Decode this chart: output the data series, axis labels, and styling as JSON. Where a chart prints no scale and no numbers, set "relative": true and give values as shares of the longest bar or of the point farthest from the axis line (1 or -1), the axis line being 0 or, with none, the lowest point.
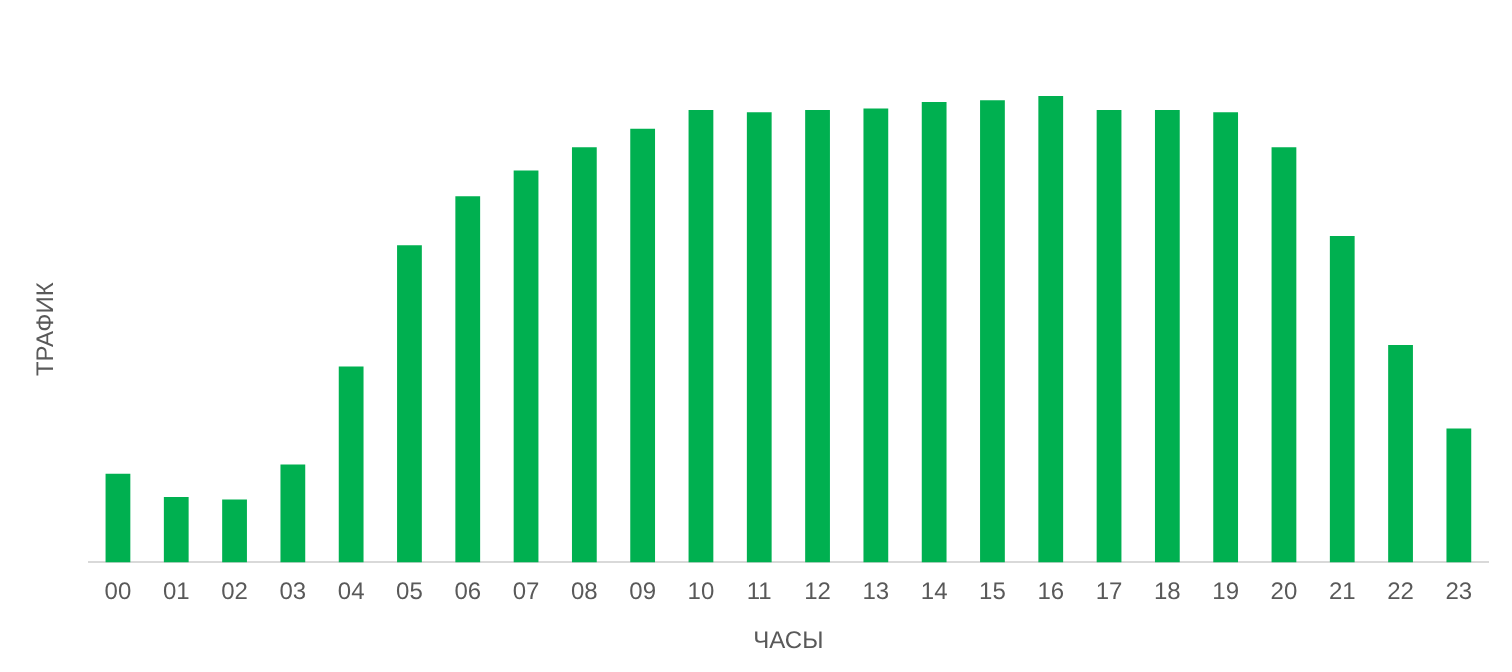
{
  "chart_data": {
    "type": "bar",
    "relative": true,
    "xlabel": "ЧАСЫ",
    "ylabel": "ТРАФИК",
    "categories": [
      "00",
      "01",
      "02",
      "03",
      "04",
      "05",
      "06",
      "07",
      "08",
      "09",
      "10",
      "11",
      "12",
      "13",
      "14",
      "15",
      "16",
      "17",
      "18",
      "19",
      "20",
      "21",
      "22",
      "23"
    ],
    "values": [
      0.19,
      0.14,
      0.135,
      0.21,
      0.42,
      0.68,
      0.785,
      0.84,
      0.89,
      0.93,
      0.97,
      0.965,
      0.97,
      0.973,
      0.987,
      0.991,
      1,
      0.97,
      0.97,
      0.965,
      0.89,
      0.7,
      0.466,
      0.287
    ],
    "color": "#00b050",
    "grid": false,
    "legend": false
  }
}
